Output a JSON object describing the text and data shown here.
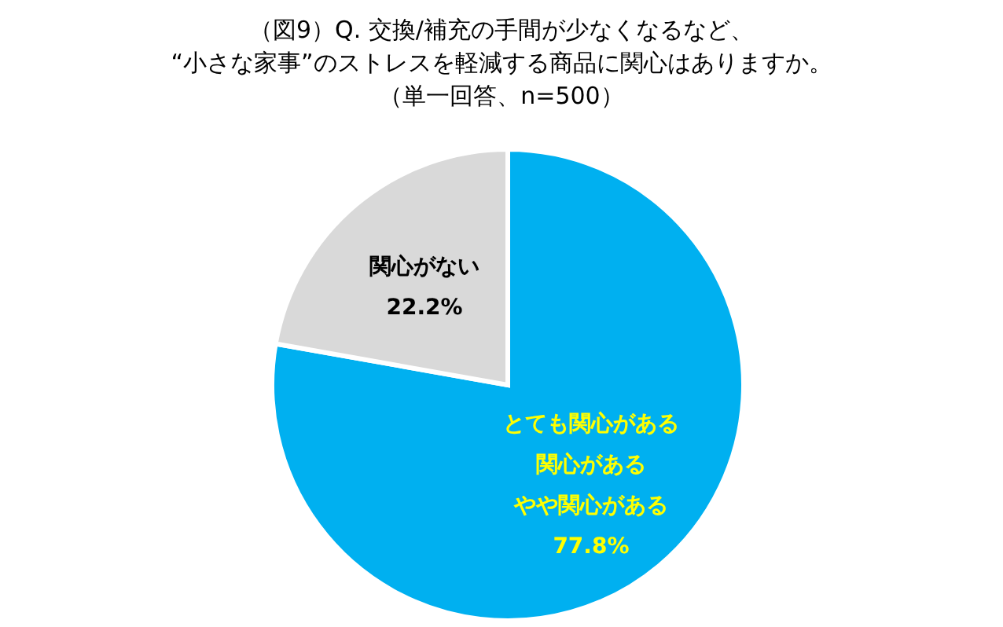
{
  "chart_data": {
    "type": "pie",
    "title": "（図9）Q. 交換/補充の手間が少なくなるなど、\n“小さな家事”のストレスを軽減する商品に関心はありますか。",
    "subtitle": "（単一回答、n=500）",
    "categories": [
      null,
      "関心がない"
    ],
    "annotations": [
      "とても関心がある",
      "関心がある",
      "やや関心がある"
    ],
    "values": [
      77.8,
      22.2
    ],
    "value_labels": [
      "77.8%",
      "22.2%"
    ],
    "colors": [
      "#00b0f0",
      "#d9d9d9"
    ],
    "legend": false
  }
}
